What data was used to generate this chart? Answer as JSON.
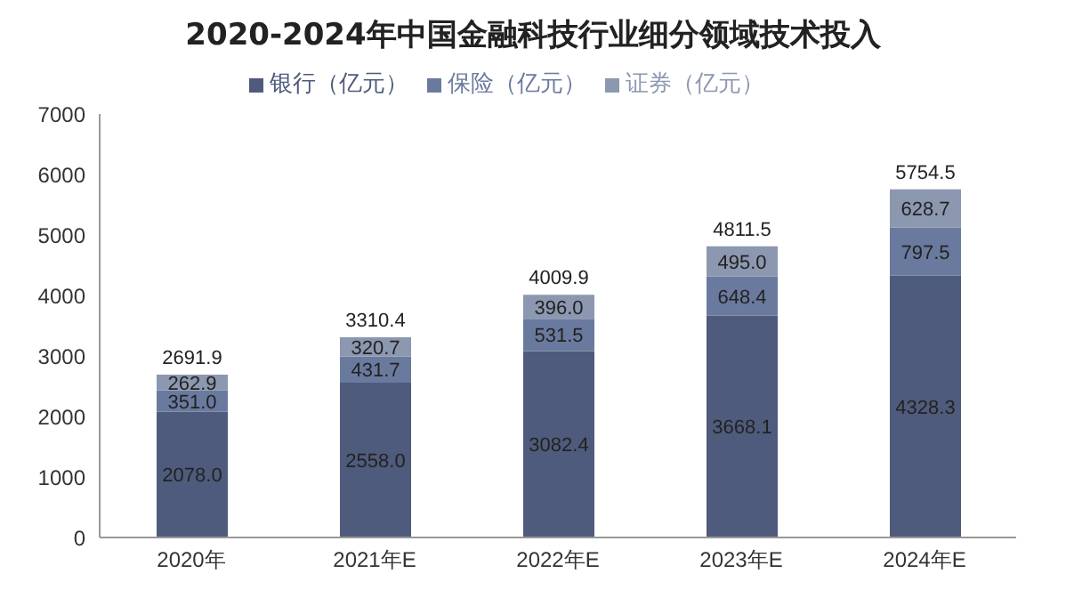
{
  "chart_data": {
    "type": "bar",
    "title": "2020-2024年中国金融科技行业细分领域技术投入",
    "categories": [
      "2020年",
      "2021年E",
      "2022年E",
      "2023年E",
      "2024年E"
    ],
    "stacked": true,
    "series": [
      {
        "name": "银行（亿元）",
        "color": "#4f5b7c",
        "values": [
          2078,
          2558,
          3082.4,
          3668.1,
          4328.3
        ],
        "value_labels": [
          "2078.0",
          "2558.0",
          "3082.4",
          "3668.1",
          "4328.3"
        ]
      },
      {
        "name": "保险（亿元）",
        "color": "#6a7a9e",
        "values": [
          351,
          431.7,
          531.5,
          648.4,
          797.5
        ],
        "value_labels": [
          "351.0",
          "431.7",
          "531.5",
          "648.4",
          "797.5"
        ]
      },
      {
        "name": "证券（亿元）",
        "color": "#8c97b0",
        "values": [
          262.9,
          320.7,
          396,
          495,
          628.7
        ],
        "value_labels": [
          "262.9",
          "320.7",
          "396.0",
          "495.0",
          "628.7"
        ]
      }
    ],
    "totals": [
      "2691.9",
      "3310.4",
      "4009.9",
      "4811.5",
      "5754.5"
    ],
    "ylim": [
      0,
      7000
    ],
    "yticks": [
      0,
      1000,
      2000,
      3000,
      4000,
      5000,
      6000,
      7000
    ],
    "grid": false,
    "legend": "top"
  }
}
